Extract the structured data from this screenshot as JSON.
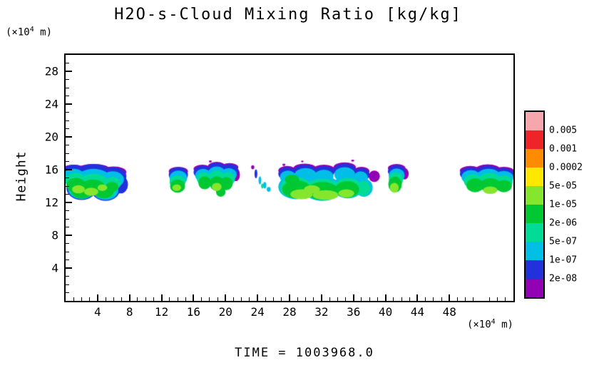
{
  "chart_data": {
    "type": "filled_contour",
    "title": "H2O-s-Cloud Mixing Ratio [kg/kg]",
    "ylabel": "Height",
    "units": {
      "prefix": "(×10",
      "sup": "4",
      "suffix": " m)"
    },
    "time_label": "TIME = 1003968.0",
    "xlim": [
      0,
      56
    ],
    "ylim": [
      0,
      30
    ],
    "xticks": [
      4,
      8,
      12,
      16,
      20,
      24,
      28,
      32,
      36,
      40,
      44,
      48
    ],
    "yticks": [
      4,
      8,
      12,
      16,
      20,
      24,
      28
    ],
    "grid": false,
    "legend_position": "right-colorbar",
    "colorbar": {
      "labels": [
        "0.005",
        "0.001",
        "0.0002",
        "5e-05",
        "1e-05",
        "2e-06",
        "5e-07",
        "1e-07",
        "2e-08"
      ],
      "colors": [
        "#F5A7AD",
        "#EF2429",
        "#FF8C00",
        "#FFE800",
        "#86E62E",
        "#00C832",
        "#00DC96",
        "#00BEE6",
        "#2331DC",
        "#9201B4"
      ]
    },
    "cloud_band_height_range": [
      12,
      17
    ],
    "blobs": [
      [
        1.0,
        16.0,
        1.5,
        0.6,
        9
      ],
      [
        3.5,
        16.1,
        2.0,
        0.6,
        9
      ],
      [
        6.0,
        15.7,
        1.6,
        0.7,
        9
      ],
      [
        14.1,
        15.8,
        1.2,
        0.55,
        9
      ],
      [
        17.1,
        16.1,
        1.1,
        0.5,
        9
      ],
      [
        18.9,
        16.4,
        1.1,
        0.55,
        9
      ],
      [
        20.5,
        16.3,
        1.1,
        0.5,
        9
      ],
      [
        21.3,
        15.4,
        0.5,
        0.8,
        9
      ],
      [
        23.4,
        16.3,
        0.2,
        0.25,
        9
      ],
      [
        18.1,
        17.0,
        0.18,
        0.12,
        9
      ],
      [
        27.3,
        16.6,
        0.2,
        0.15,
        9
      ],
      [
        29.6,
        17.0,
        0.16,
        0.1,
        9
      ],
      [
        35.9,
        17.1,
        0.2,
        0.12,
        9
      ],
      [
        27.7,
        15.9,
        1.1,
        0.55,
        9
      ],
      [
        29.9,
        16.2,
        1.4,
        0.55,
        9
      ],
      [
        32.3,
        16.1,
        1.3,
        0.5,
        9
      ],
      [
        34.9,
        16.3,
        1.4,
        0.6,
        9
      ],
      [
        37.0,
        15.8,
        1.0,
        0.55,
        9
      ],
      [
        38.6,
        15.2,
        0.7,
        0.7,
        9
      ],
      [
        41.4,
        16.2,
        1.1,
        0.5,
        9
      ],
      [
        42.4,
        15.5,
        0.5,
        0.7,
        9
      ],
      [
        50.6,
        15.9,
        1.3,
        0.55,
        9
      ],
      [
        52.8,
        16.1,
        1.5,
        0.55,
        9
      ],
      [
        54.8,
        15.8,
        1.3,
        0.55,
        9
      ],
      [
        1.0,
        15.6,
        1.5,
        1.0,
        8
      ],
      [
        3.5,
        15.7,
        2.0,
        1.0,
        8
      ],
      [
        6.0,
        15.2,
        1.6,
        1.1,
        8
      ],
      [
        2.0,
        13.8,
        1.9,
        1.5,
        8
      ],
      [
        5.0,
        13.6,
        1.8,
        1.4,
        8
      ],
      [
        6.9,
        14.2,
        0.9,
        1.1,
        8
      ],
      [
        14.1,
        15.4,
        1.2,
        0.9,
        8
      ],
      [
        17.1,
        15.7,
        1.1,
        0.8,
        8
      ],
      [
        18.9,
        16.0,
        1.2,
        0.85,
        8
      ],
      [
        20.5,
        15.9,
        1.1,
        0.8,
        8
      ],
      [
        23.8,
        15.5,
        0.18,
        0.55,
        8
      ],
      [
        27.7,
        15.5,
        1.1,
        0.8,
        8
      ],
      [
        29.9,
        15.8,
        1.4,
        0.8,
        8
      ],
      [
        32.3,
        15.7,
        1.3,
        0.75,
        8
      ],
      [
        34.9,
        15.9,
        1.4,
        0.85,
        8
      ],
      [
        37.0,
        15.4,
        1.0,
        0.8,
        8
      ],
      [
        41.4,
        15.8,
        1.1,
        0.75,
        8
      ],
      [
        50.6,
        15.5,
        1.3,
        0.8,
        8
      ],
      [
        52.8,
        15.7,
        1.5,
        0.8,
        8
      ],
      [
        54.8,
        15.4,
        1.3,
        0.8,
        8
      ],
      [
        1.0,
        15.2,
        1.4,
        0.9,
        7
      ],
      [
        3.5,
        15.2,
        1.9,
        0.9,
        7
      ],
      [
        5.9,
        14.8,
        1.4,
        1.0,
        7
      ],
      [
        2.0,
        13.7,
        1.7,
        1.3,
        7
      ],
      [
        5.0,
        13.5,
        1.6,
        1.2,
        7
      ],
      [
        14.1,
        15.0,
        1.1,
        0.9,
        7
      ],
      [
        17.2,
        15.3,
        1.0,
        0.8,
        7
      ],
      [
        18.9,
        15.5,
        1.1,
        0.9,
        7
      ],
      [
        20.4,
        15.4,
        1.0,
        0.8,
        7
      ],
      [
        24.3,
        14.7,
        0.18,
        0.5,
        7
      ],
      [
        24.9,
        14.1,
        0.2,
        0.4,
        7
      ],
      [
        25.4,
        13.6,
        0.25,
        0.3,
        7
      ],
      [
        27.8,
        15.1,
        1.0,
        0.8,
        7
      ],
      [
        30.0,
        15.3,
        1.4,
        0.9,
        7
      ],
      [
        32.3,
        15.2,
        1.2,
        0.8,
        7
      ],
      [
        34.9,
        15.4,
        1.3,
        0.9,
        7
      ],
      [
        36.9,
        15.0,
        0.9,
        0.8,
        7
      ],
      [
        28.8,
        13.9,
        2.2,
        1.5,
        7
      ],
      [
        32.1,
        13.7,
        2.4,
        1.5,
        7
      ],
      [
        35.3,
        13.9,
        1.9,
        1.4,
        7
      ],
      [
        37.3,
        13.8,
        1.1,
        1.1,
        7
      ],
      [
        41.4,
        15.3,
        1.0,
        0.85,
        7
      ],
      [
        50.7,
        15.1,
        1.2,
        0.85,
        7
      ],
      [
        52.9,
        15.2,
        1.5,
        0.9,
        7
      ],
      [
        54.8,
        15.0,
        1.2,
        0.85,
        7
      ],
      [
        1.2,
        14.7,
        1.3,
        0.9,
        6
      ],
      [
        3.5,
        14.6,
        1.7,
        0.9,
        6
      ],
      [
        2.0,
        13.6,
        1.5,
        1.1,
        6
      ],
      [
        4.9,
        13.5,
        1.4,
        1.0,
        6
      ],
      [
        5.9,
        14.3,
        1.0,
        0.8,
        6
      ],
      [
        14.0,
        14.5,
        1.0,
        0.8,
        6
      ],
      [
        17.3,
        14.9,
        0.9,
        0.8,
        6
      ],
      [
        18.9,
        15.0,
        1.0,
        0.9,
        6
      ],
      [
        20.3,
        14.9,
        0.9,
        0.8,
        6
      ],
      [
        24.6,
        14.0,
        0.15,
        0.3,
        6
      ],
      [
        28.8,
        13.8,
        2.0,
        1.3,
        6
      ],
      [
        32.1,
        13.6,
        2.2,
        1.3,
        6
      ],
      [
        35.3,
        13.8,
        1.7,
        1.2,
        6
      ],
      [
        37.2,
        13.7,
        0.9,
        0.9,
        6
      ],
      [
        41.3,
        14.8,
        0.9,
        0.9,
        6
      ],
      [
        50.9,
        14.6,
        1.1,
        0.85,
        6
      ],
      [
        53.0,
        14.7,
        1.4,
        0.9,
        6
      ],
      [
        54.8,
        14.5,
        1.1,
        0.8,
        6
      ],
      [
        1.3,
        14.1,
        1.2,
        0.9,
        5
      ],
      [
        3.4,
        13.9,
        1.5,
        0.9,
        5
      ],
      [
        2.0,
        13.4,
        1.3,
        0.9,
        5
      ],
      [
        4.8,
        13.3,
        1.2,
        0.8,
        5
      ],
      [
        5.8,
        13.9,
        0.8,
        0.6,
        5
      ],
      [
        14.0,
        14.0,
        0.95,
        0.8,
        5
      ],
      [
        17.4,
        14.4,
        0.8,
        0.8,
        5
      ],
      [
        18.9,
        14.3,
        0.9,
        0.9,
        5
      ],
      [
        20.1,
        14.3,
        0.8,
        0.8,
        5
      ],
      [
        19.4,
        13.3,
        0.6,
        0.6,
        5
      ],
      [
        28.9,
        13.6,
        1.8,
        1.1,
        5
      ],
      [
        32.1,
        13.4,
        2.0,
        1.1,
        5
      ],
      [
        35.2,
        13.6,
        1.5,
        1.0,
        5
      ],
      [
        28.3,
        14.8,
        0.9,
        0.6,
        5
      ],
      [
        41.2,
        14.2,
        0.85,
        0.95,
        5
      ],
      [
        51.2,
        14.1,
        1.1,
        0.85,
        5
      ],
      [
        53.1,
        14.1,
        1.3,
        0.85,
        5
      ],
      [
        54.8,
        14.0,
        1.0,
        0.75,
        5
      ],
      [
        1.6,
        13.6,
        0.8,
        0.5,
        4
      ],
      [
        3.2,
        13.3,
        0.9,
        0.5,
        4
      ],
      [
        4.6,
        13.8,
        0.6,
        0.4,
        4
      ],
      [
        13.9,
        13.8,
        0.55,
        0.4,
        4
      ],
      [
        18.9,
        13.9,
        0.6,
        0.5,
        4
      ],
      [
        29.5,
        13.0,
        1.4,
        0.6,
        4
      ],
      [
        32.5,
        12.9,
        1.6,
        0.6,
        4
      ],
      [
        35.1,
        13.1,
        1.0,
        0.5,
        4
      ],
      [
        30.8,
        13.6,
        1.0,
        0.5,
        4
      ],
      [
        41.1,
        13.8,
        0.55,
        0.6,
        4
      ],
      [
        53.1,
        13.5,
        0.9,
        0.45,
        4
      ]
    ]
  }
}
